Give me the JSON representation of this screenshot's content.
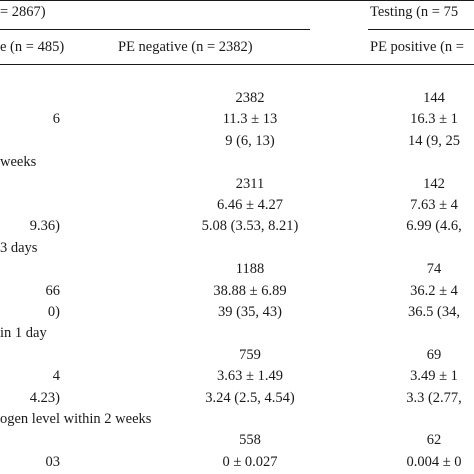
{
  "header": {
    "training_fragment": "= 2867)",
    "testing_label": "Testing (n = 75",
    "col_pe_positive_fragment": "e (n = 485)",
    "col_pe_negative": "PE negative (n = 2382)",
    "col_pe_positive_testing": "PE positive (n ="
  },
  "rows": [
    {
      "label": "",
      "a": "",
      "b": "2382",
      "c": "144"
    },
    {
      "label": "",
      "a": "6",
      "b": "11.3 ± 13",
      "c": "16.3 ± 1"
    },
    {
      "label": "",
      "a": "",
      "b": "9 (6, 13)",
      "c": "14 (9, 25"
    },
    {
      "label": "weeks",
      "a": "",
      "b": "",
      "c": ""
    },
    {
      "label": "",
      "a": "",
      "b": "2311",
      "c": "142"
    },
    {
      "label": "",
      "a": "",
      "b": "6.46 ± 4.27",
      "c": "7.63 ± 4"
    },
    {
      "label": "",
      "a": "9.36)",
      "b": "5.08 (3.53, 8.21)",
      "c": "6.99 (4.6,"
    },
    {
      "label": "3 days",
      "a": "",
      "b": "",
      "c": ""
    },
    {
      "label": "",
      "a": "",
      "b": "1188",
      "c": "74"
    },
    {
      "label": "",
      "a": "66",
      "b": "38.88 ± 6.89",
      "c": "36.2 ± 4"
    },
    {
      "label": "",
      "a": "0)",
      "b": "39 (35, 43)",
      "c": "36.5 (34,"
    },
    {
      "label": "in 1 day",
      "a": "",
      "b": "",
      "c": ""
    },
    {
      "label": "",
      "a": "",
      "b": "759",
      "c": "69"
    },
    {
      "label": "",
      "a": "4",
      "b": "3.63 ± 1.49",
      "c": "3.49 ± 1"
    },
    {
      "label": "",
      "a": "4.23)",
      "b": "3.24 (2.5, 4.54)",
      "c": "3.3 (2.77,"
    },
    {
      "label": "ogen level within 2 weeks",
      "a": "",
      "b": "",
      "c": ""
    },
    {
      "label": "",
      "a": "",
      "b": "558",
      "c": "62"
    },
    {
      "label": "",
      "a": "03",
      "b": "0 ± 0.027",
      "c": "0.004 ± 0"
    }
  ]
}
